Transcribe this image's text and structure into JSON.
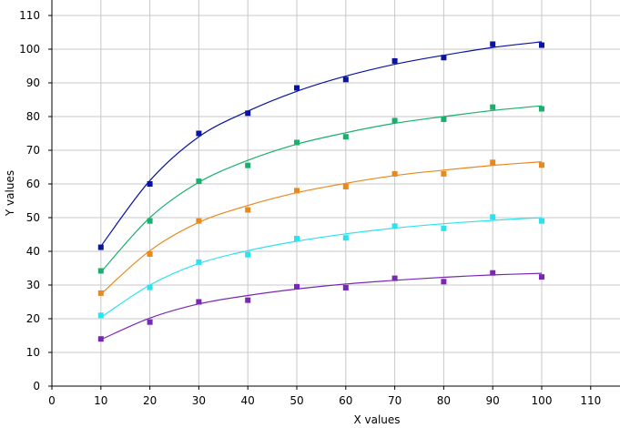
{
  "chart_data": {
    "type": "scatter",
    "title": "",
    "xlabel": "X values",
    "ylabel": "Y values",
    "xlim": [
      0,
      115
    ],
    "ylim": [
      0,
      115
    ],
    "x_ticks": [
      0,
      10,
      20,
      30,
      40,
      50,
      60,
      70,
      80,
      90,
      100,
      110
    ],
    "y_ticks": [
      0,
      10,
      20,
      30,
      40,
      50,
      60,
      70,
      80,
      90,
      100,
      110
    ],
    "grid": true,
    "legend": "none",
    "x": [
      10,
      20,
      30,
      40,
      50,
      60,
      70,
      80,
      90,
      100
    ],
    "series": [
      {
        "color": "#0a14a0",
        "values": [
          41.2,
          60,
          75,
          81,
          88.5,
          91,
          96.5,
          97.5,
          101.5,
          101.2
        ],
        "fit": [
          41.5,
          61,
          74,
          81.6,
          87.5,
          92,
          95.5,
          98.2,
          100.5,
          102.2
        ]
      },
      {
        "color": "#1aaf6c",
        "values": [
          34.2,
          49,
          60.8,
          65.5,
          72.3,
          74,
          78.8,
          79.2,
          82.8,
          82.3
        ],
        "fit": [
          33.8,
          50,
          60.5,
          67,
          71.8,
          75.2,
          78,
          80,
          81.8,
          83.2
        ]
      },
      {
        "color": "#e8891e",
        "values": [
          27.6,
          39.2,
          49,
          52.3,
          58,
          59.2,
          63,
          63,
          66.4,
          65.6
        ],
        "fit": [
          27.3,
          40.2,
          48.6,
          53.6,
          57.4,
          60.2,
          62.5,
          64.1,
          65.5,
          66.6
        ]
      },
      {
        "color": "#2be3f0",
        "values": [
          21,
          29.3,
          36.8,
          39,
          43.8,
          44,
          47.5,
          46.8,
          50.2,
          49
        ],
        "fit": [
          20.4,
          30,
          36.4,
          40.2,
          43,
          45.2,
          46.9,
          48.2,
          49.2,
          50
        ]
      },
      {
        "color": "#7b27b5",
        "values": [
          14,
          19,
          25,
          25.5,
          29.5,
          29.2,
          32,
          31,
          33.6,
          32.4
        ],
        "fit": [
          13.8,
          20.2,
          24.4,
          26.9,
          28.8,
          30.3,
          31.4,
          32.3,
          33,
          33.5
        ]
      }
    ]
  }
}
